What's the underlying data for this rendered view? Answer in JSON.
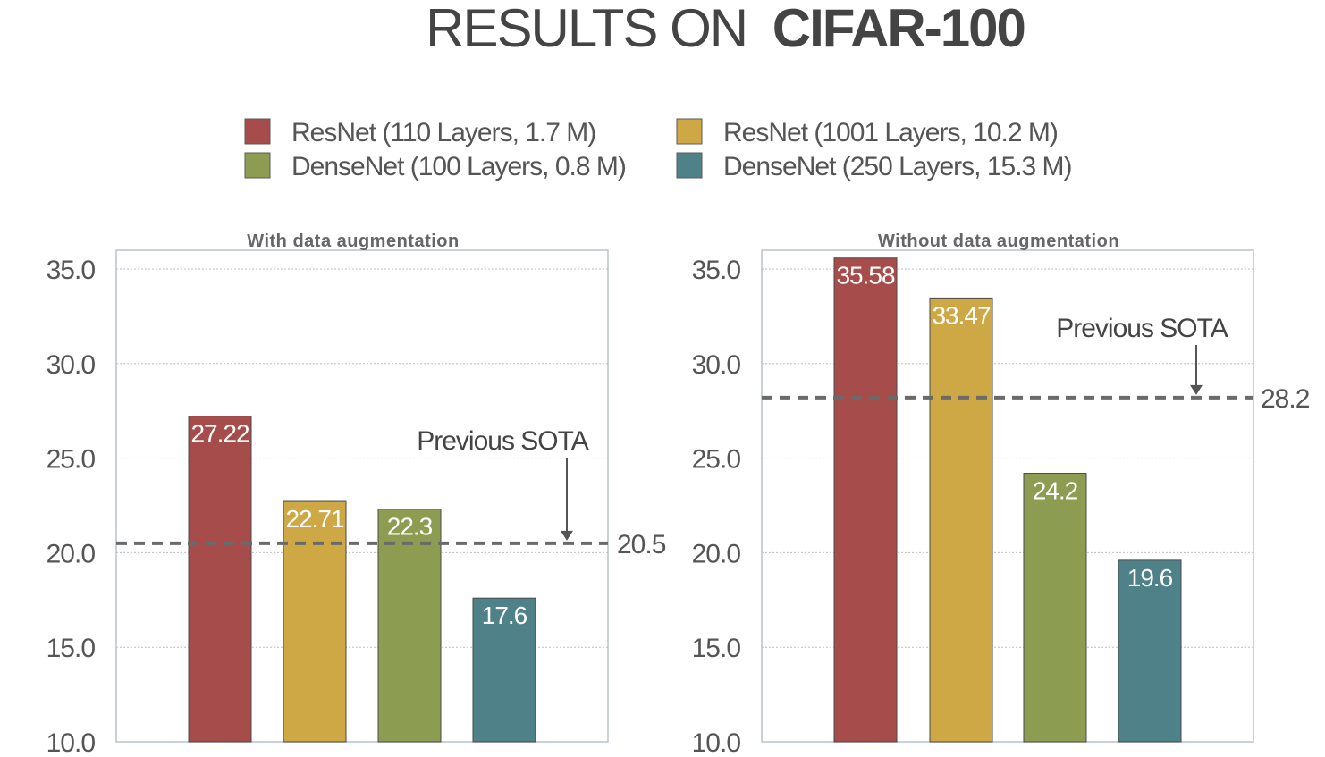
{
  "title": {
    "light": "RESULTS ON",
    "bold": "CIFAR-100"
  },
  "colors": {
    "resnet110": "#a64c4a",
    "resnet1001": "#cfa846",
    "densenet100": "#8c9d52",
    "densenet250": "#4f8288",
    "reference_line": "#6a6a6a",
    "axis_text": "#555555",
    "grid": "#bdbdbd",
    "frame": "#b9c2cc"
  },
  "chart_data": [
    {
      "type": "bar",
      "title": "With data augmentation",
      "ylim": [
        10,
        35
      ],
      "yticks": [
        "10.0",
        "15.0",
        "20.0",
        "25.0",
        "30.0",
        "35.0"
      ],
      "grid": true,
      "legend": "top",
      "series": [
        {
          "name": "ResNet (110 Layers, 1.7 M)",
          "values": [
            27.22
          ],
          "label": "27.22",
          "color": "#a64c4a"
        },
        {
          "name": "ResNet (1001 Layers, 10.2 M)",
          "values": [
            22.71
          ],
          "label": "22.71",
          "color": "#cfa846"
        },
        {
          "name": "DenseNet (100 Layers, 0.8 M)",
          "values": [
            22.3
          ],
          "label": "22.3",
          "color": "#8c9d52"
        },
        {
          "name": "DenseNet (250 Layers, 15.3 M)",
          "values": [
            17.6
          ],
          "label": "17.6",
          "color": "#4f8288"
        }
      ],
      "reference": {
        "value": 20.5,
        "label": "20.5",
        "annotation": "Previous SOTA"
      }
    },
    {
      "type": "bar",
      "title": "Without data augmentation",
      "ylim": [
        10,
        35
      ],
      "yticks": [
        "10.0",
        "15.0",
        "20.0",
        "25.0",
        "30.0",
        "35.0"
      ],
      "grid": true,
      "legend": "top",
      "series": [
        {
          "name": "ResNet (110 Layers, 1.7 M)",
          "values": [
            35.58
          ],
          "label": "35.58",
          "color": "#a64c4a"
        },
        {
          "name": "ResNet (1001 Layers, 10.2 M)",
          "values": [
            33.47
          ],
          "label": "33.47",
          "color": "#cfa846"
        },
        {
          "name": "DenseNet (100 Layers, 0.8 M)",
          "values": [
            24.2
          ],
          "label": "24.2",
          "color": "#8c9d52"
        },
        {
          "name": "DenseNet (250 Layers, 15.3 M)",
          "values": [
            19.6
          ],
          "label": "19.6",
          "color": "#4f8288"
        }
      ],
      "reference": {
        "value": 28.2,
        "label": "28.2",
        "annotation": "Previous SOTA"
      }
    }
  ],
  "legend": [
    {
      "label": "ResNet (110 Layers, 1.7 M)",
      "color": "#a64c4a"
    },
    {
      "label": "ResNet (1001 Layers, 10.2 M)",
      "color": "#cfa846"
    },
    {
      "label": "DenseNet (100 Layers, 0.8 M)",
      "color": "#8c9d52"
    },
    {
      "label": "DenseNet (250 Layers, 15.3 M)",
      "color": "#4f8288"
    }
  ]
}
